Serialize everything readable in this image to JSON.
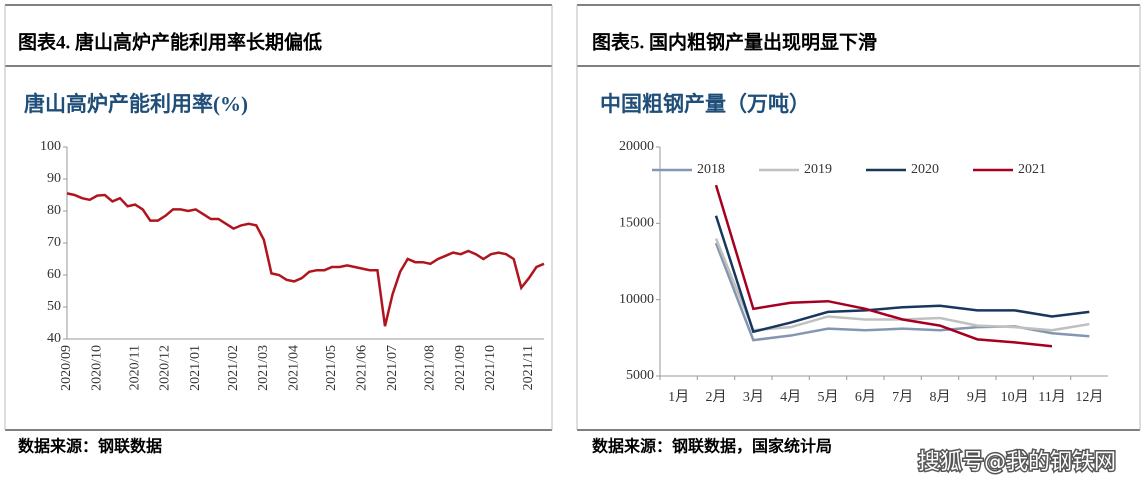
{
  "panels": [
    {
      "header": "图表4.  唐山高炉产能利用率长期偏低",
      "source": "数据来源：钢联数据"
    },
    {
      "header": "图表5.  国内粗钢产量出现明显下滑",
      "source": "数据来源：钢联数据，国家统计局"
    }
  ],
  "watermark": "搜狐号@我的钢铁网",
  "chart_data": [
    {
      "type": "line",
      "title": "唐山高炉产能利用率(%)",
      "color": "#b0151e",
      "categories": [
        "2020/09",
        null,
        null,
        null,
        "2020/10",
        null,
        null,
        null,
        null,
        "2020/11",
        null,
        null,
        null,
        "2020/12",
        null,
        null,
        null,
        "2021/01",
        null,
        null,
        null,
        null,
        "2021/02",
        null,
        null,
        null,
        "2021/03",
        null,
        null,
        null,
        "2021/04",
        null,
        null,
        null,
        null,
        "2021/05",
        null,
        null,
        null,
        "2021/06",
        null,
        null,
        null,
        "2021/07",
        null,
        null,
        null,
        null,
        "2021/08",
        null,
        null,
        null,
        "2021/09",
        null,
        null,
        null,
        "2021/10",
        null,
        null,
        null,
        null,
        "2021/11",
        null,
        null
      ],
      "values": [
        85.5,
        85,
        84,
        83.5,
        84.8,
        85,
        83,
        84,
        81.5,
        82,
        80.5,
        77,
        77,
        78.5,
        80.5,
        80.5,
        80,
        80.5,
        79,
        77.5,
        77.5,
        76,
        74.5,
        75.5,
        76,
        75.5,
        71,
        60.5,
        60,
        58.5,
        58,
        59,
        61,
        61.5,
        61.5,
        62.5,
        62.5,
        63,
        62.5,
        62,
        61.5,
        61.5,
        44,
        54,
        61,
        65,
        64,
        64,
        63.5,
        65,
        66,
        67,
        66.5,
        67.5,
        66.5,
        65,
        66.5,
        67,
        66.5,
        65,
        56,
        59,
        62.5,
        63.5
      ],
      "ylim": [
        40,
        100
      ],
      "yticks": [
        40,
        50,
        60,
        70,
        80,
        90,
        100
      ]
    },
    {
      "type": "line",
      "title": "中国粗钢产量（万吨）",
      "legend": "top",
      "categories": [
        "1月",
        "2月",
        "3月",
        "4月",
        "5月",
        "6月",
        "7月",
        "8月",
        "9月",
        "10月",
        "11月",
        "12月"
      ],
      "series": [
        {
          "name": "2018",
          "color": "#8497b0",
          "values": [
            null,
            13700,
            7350,
            7650,
            8100,
            8000,
            8100,
            8000,
            8200,
            8250,
            7800,
            7600
          ]
        },
        {
          "name": "2019",
          "color": "#c0c0c0",
          "values": [
            null,
            14000,
            8000,
            8200,
            8900,
            8700,
            8700,
            8800,
            8300,
            8200,
            8000,
            8400
          ]
        },
        {
          "name": "2020",
          "color": "#17375e",
          "values": [
            null,
            15500,
            7900,
            8500,
            9200,
            9300,
            9500,
            9600,
            9300,
            9300,
            8900,
            9200
          ]
        },
        {
          "name": "2021",
          "color": "#a50021",
          "values": [
            null,
            17500,
            9400,
            9800,
            9900,
            9400,
            8700,
            8300,
            7400,
            7200,
            6950,
            null
          ]
        }
      ],
      "ylim": [
        5000,
        20000
      ],
      "yticks": [
        5000,
        10000,
        15000,
        20000
      ]
    }
  ]
}
